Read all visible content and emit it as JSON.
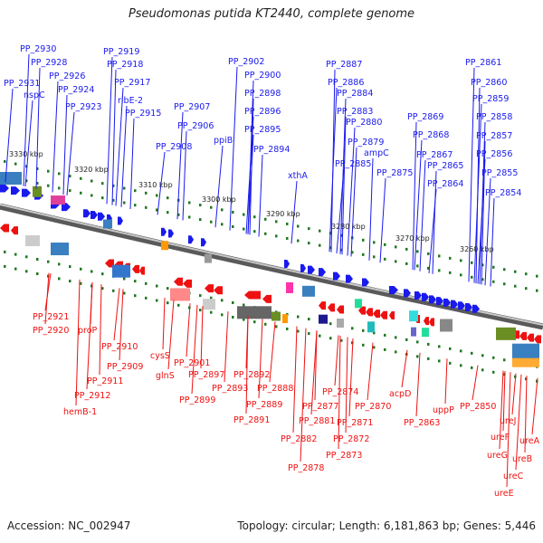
{
  "title": "Pseudomonas putida KT2440, complete genome",
  "footer": {
    "accession": "Accession: NC_002947",
    "summary": "Topology: circular; Length: 6,181,863 bp; Genes: 5,446"
  },
  "colors": {
    "forward": "#1a1aee",
    "reverse": "#ee1111",
    "backbone": "#888888",
    "tick": "#227722"
  },
  "scale_labels": [
    "3330 kbp",
    "3320 kbp",
    "3310 kbp",
    "3300 kbp",
    "3290 kbp",
    "3280 kbp",
    "3270 kbp",
    "3260 kbp"
  ],
  "top_genes": [
    "PP_2931",
    "PP_2930",
    "PP_2928",
    "nspC",
    "PP_2926",
    "PP_2924",
    "PP_2923",
    "PP_2919",
    "PP_2918",
    "PP_2917",
    "ribE-2",
    "PP_2915",
    "PP_2908",
    "PP_2907",
    "PP_2906",
    "PP_2902",
    "PP_2900",
    "PP_2898",
    "PP_2896",
    "PP_2895",
    "PP_2894",
    "ppiB",
    "xthA",
    "PP_2887",
    "PP_2886",
    "PP_2884",
    "PP_2883",
    "PP_2880",
    "PP_2879",
    "ampC",
    "PP_2885",
    "PP_2875",
    "PP_2869",
    "PP_2868",
    "PP_2867",
    "PP_2865",
    "PP_2864",
    "PP_2861",
    "PP_2860",
    "PP_2859",
    "PP_2858",
    "PP_2857",
    "PP_2856",
    "PP_2855",
    "PP_2854"
  ],
  "bottom_genes": [
    "PP_2921",
    "PP_2920",
    "proP",
    "PP_2910",
    "PP_2909",
    "PP_2911",
    "PP_2912",
    "hemB-1",
    "cysS",
    "glnS",
    "PP_2901",
    "PP_2897",
    "PP_2899",
    "PP_2893",
    "PP_2892",
    "PP_2888",
    "PP_2889",
    "PP_2891",
    "PP_2881",
    "PP_2882",
    "PP_2877",
    "PP_2878",
    "PP_2874",
    "PP_2873",
    "PP_2870",
    "PP_2871",
    "PP_2872",
    "acpD",
    "PP_2863",
    "uppP",
    "PP_2850",
    "ureJ",
    "ureF",
    "ureA",
    "ureG",
    "ureB",
    "ureC",
    "ureE"
  ]
}
